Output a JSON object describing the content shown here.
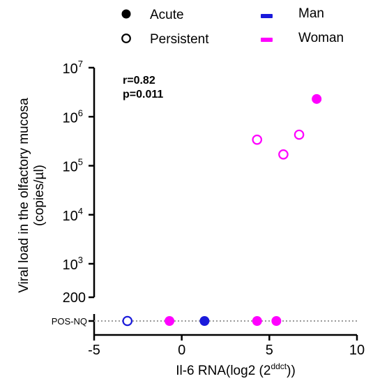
{
  "chart_data": {
    "type": "scatter",
    "xlabel": "Il-6 RNA(log2 (2",
    "xlabel_sup": "ddct",
    "xlabel_suffix": "))",
    "ylabel_line1": "Viral load in the olfactory mucosa",
    "ylabel_line2": "(copies/µl)",
    "xlim": [
      -5,
      10
    ],
    "x_ticks": [
      -5,
      0,
      5,
      10
    ],
    "x_tick_labels": [
      "-5",
      "0",
      "5",
      "10"
    ],
    "y_scale": "log",
    "y_ticks": [
      {
        "value": 1000,
        "base": "10",
        "exp": "3"
      },
      {
        "value": 10000,
        "base": "10",
        "exp": "4"
      },
      {
        "value": 100000,
        "base": "10",
        "exp": "5"
      },
      {
        "value": 1000000,
        "base": "10",
        "exp": "6"
      },
      {
        "value": 10000000,
        "base": "10",
        "exp": "7"
      }
    ],
    "y_axis_bottom_label": "200",
    "pos_nq_label": "POS-NQ",
    "stats": {
      "r": "r=0.82",
      "p": "p=0.011"
    },
    "legend": {
      "markers": [
        {
          "label": "Acute",
          "fill": "filled"
        },
        {
          "label": "Persistent",
          "fill": "open"
        }
      ],
      "sex": [
        {
          "label": "Man",
          "color": "#1a1adb"
        },
        {
          "label": "Woman",
          "color": "#ff00ff"
        }
      ]
    },
    "colors": {
      "man": "#1a1adb",
      "woman": "#ff00ff",
      "axis": "#000000",
      "dotted_line": "#999999"
    },
    "points": [
      {
        "x": 7.7,
        "y": 2300000,
        "phase": "acute",
        "sex": "woman"
      },
      {
        "x": 6.7,
        "y": 430000,
        "phase": "persistent",
        "sex": "woman"
      },
      {
        "x": 4.3,
        "y": 340000,
        "phase": "persistent",
        "sex": "woman"
      },
      {
        "x": 5.8,
        "y": 170000,
        "phase": "persistent",
        "sex": "woman"
      },
      {
        "x": -3.1,
        "y": "POS-NQ",
        "phase": "persistent",
        "sex": "man"
      },
      {
        "x": -0.7,
        "y": "POS-NQ",
        "phase": "acute",
        "sex": "woman"
      },
      {
        "x": 1.3,
        "y": "POS-NQ",
        "phase": "acute",
        "sex": "man"
      },
      {
        "x": 4.3,
        "y": "POS-NQ",
        "phase": "acute",
        "sex": "woman"
      },
      {
        "x": 5.4,
        "y": "POS-NQ",
        "phase": "acute",
        "sex": "woman"
      }
    ]
  }
}
